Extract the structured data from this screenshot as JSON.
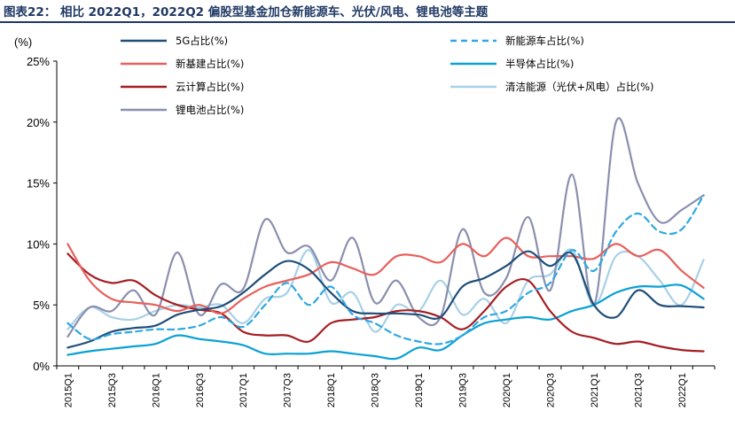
{
  "figure": {
    "title": "图表22： 相比 2022Q1，2022Q2 偏股型基金加仓新能源车、光伏/风电、锂电池等主题"
  },
  "chart_data": {
    "type": "line",
    "unit_label": "(%)",
    "y_ticks": [
      "0%",
      "5%",
      "10%",
      "15%",
      "20%",
      "25%"
    ],
    "ylim": [
      0,
      25
    ],
    "categories": [
      "2015Q1",
      "2015Q2",
      "2015Q3",
      "2015Q4",
      "2016Q1",
      "2016Q2",
      "2016Q3",
      "2016Q4",
      "2017Q1",
      "2017Q2",
      "2017Q3",
      "2017Q4",
      "2018Q1",
      "2018Q2",
      "2018Q3",
      "2018Q4",
      "2019Q1",
      "2019Q2",
      "2019Q3",
      "2019Q4",
      "2020Q1",
      "2020Q2",
      "2020Q3",
      "2020Q4",
      "2021Q1",
      "2021Q2",
      "2021Q3",
      "2021Q4",
      "2022Q1",
      "2022Q2"
    ],
    "x_tick_labels": [
      "2015Q1",
      "2015Q3",
      "2016Q1",
      "2016Q3",
      "2017Q1",
      "2017Q3",
      "2018Q1",
      "2018Q3",
      "2019Q1",
      "2019Q3",
      "2020Q1",
      "2020Q3",
      "2021Q1",
      "2021Q3",
      "2022Q1"
    ],
    "legend_position": "top",
    "grid": false,
    "series": [
      {
        "name": "5G占比(%)",
        "color": "#1f4e79",
        "dash": false,
        "values": [
          1.5,
          2.0,
          2.8,
          3.1,
          3.3,
          4.2,
          4.6,
          4.9,
          6.0,
          7.5,
          8.6,
          7.9,
          6.0,
          4.5,
          4.3,
          4.3,
          4.2,
          4.0,
          6.5,
          7.2,
          8.2,
          9.4,
          8.2,
          9.2,
          5.0,
          4.0,
          6.2,
          5.0,
          4.9,
          4.8
        ]
      },
      {
        "name": "新能源车占比(%)",
        "color": "#2ea8e0",
        "dash": true,
        "values": [
          3.5,
          2.2,
          2.6,
          2.8,
          3.0,
          3.0,
          3.3,
          4.0,
          3.2,
          5.0,
          6.8,
          5.0,
          6.5,
          4.2,
          3.5,
          2.5,
          2.0,
          1.8,
          2.5,
          4.0,
          4.5,
          6.0,
          6.8,
          9.5,
          7.8,
          11.0,
          12.5,
          11.0,
          11.2,
          14.0
        ]
      },
      {
        "name": "新基建占比(%)",
        "color": "#e8605d",
        "dash": false,
        "values": [
          10.0,
          7.0,
          5.5,
          5.2,
          5.0,
          4.5,
          5.0,
          4.3,
          5.5,
          6.5,
          7.0,
          7.5,
          8.5,
          8.0,
          7.5,
          9.0,
          9.0,
          8.5,
          10.0,
          9.0,
          10.5,
          9.0,
          9.0,
          9.0,
          8.8,
          10.0,
          9.0,
          9.5,
          7.8,
          6.4
        ]
      },
      {
        "name": "半导体占比(%)",
        "color": "#0aa1d4",
        "dash": false,
        "values": [
          0.9,
          1.2,
          1.4,
          1.6,
          1.8,
          2.5,
          2.2,
          2.0,
          1.7,
          1.0,
          1.0,
          1.0,
          1.2,
          1.0,
          0.8,
          0.6,
          1.5,
          1.3,
          2.5,
          3.5,
          3.8,
          4.0,
          3.8,
          4.5,
          5.0,
          6.0,
          6.5,
          6.5,
          6.6,
          5.5
        ]
      },
      {
        "name": "云计算占比(%)",
        "color": "#a51e24",
        "dash": false,
        "values": [
          9.2,
          7.5,
          6.8,
          7.0,
          5.8,
          5.0,
          4.6,
          4.3,
          2.8,
          2.5,
          2.5,
          2.0,
          3.5,
          3.8,
          4.0,
          4.5,
          4.5,
          4.0,
          3.0,
          4.5,
          6.5,
          7.0,
          4.5,
          2.8,
          2.3,
          1.8,
          2.0,
          1.6,
          1.3,
          1.2
        ]
      },
      {
        "name": "清洁能源（光伏+风电）占比(%)",
        "color": "#a8d0e6",
        "dash": false,
        "values": [
          3.0,
          4.8,
          4.0,
          3.8,
          4.5,
          5.0,
          4.8,
          5.0,
          3.5,
          5.5,
          6.0,
          9.5,
          5.2,
          6.0,
          2.8,
          5.0,
          4.5,
          7.0,
          4.2,
          5.5,
          3.5,
          7.0,
          7.5,
          9.5,
          5.0,
          9.0,
          9.0,
          7.0,
          5.0,
          8.7
        ]
      },
      {
        "name": "锂电池占比(%)",
        "color": "#8a8fae",
        "dash": false,
        "values": [
          2.4,
          4.8,
          4.5,
          6.2,
          4.2,
          9.3,
          4.2,
          6.7,
          6.3,
          12.0,
          9.3,
          9.8,
          7.0,
          10.5,
          5.2,
          7.0,
          4.0,
          4.0,
          11.2,
          6.0,
          7.2,
          12.2,
          6.2,
          15.7,
          5.0,
          20.0,
          15.0,
          11.8,
          12.8,
          14.0
        ]
      }
    ]
  }
}
